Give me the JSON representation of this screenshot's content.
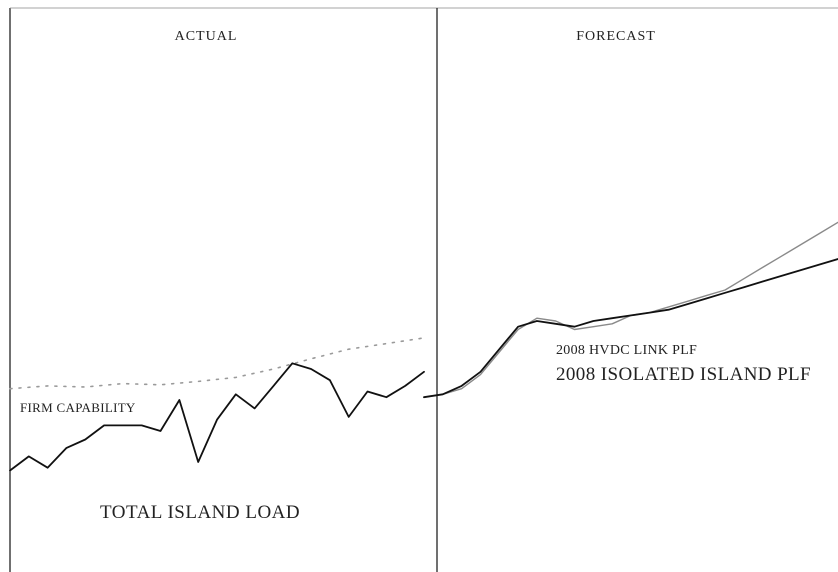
{
  "chart_data": {
    "type": "line",
    "title": "",
    "xlabel": "",
    "ylabel": "",
    "panels": {
      "actual": "ACTUAL",
      "forecast": "FORECAST"
    },
    "annotations": {
      "firm_capability": "FIRM CAPABILITY",
      "total_load": "TOTAL ISLAND LOAD",
      "hvdc_plf": "2008 HVDC LINK PLF",
      "isolated_plf": "2008 ISOLATED ISLAND PLF"
    },
    "x_range": [
      0,
      44
    ],
    "x_split": 22,
    "y_range": [
      0,
      100
    ],
    "series": [
      {
        "role": "firm_capability",
        "style": "dotted",
        "x": [
          0,
          2,
          4,
          6,
          8,
          10,
          12,
          14,
          16,
          18,
          20,
          22
        ],
        "values": [
          32.5,
          33,
          32.8,
          33.4,
          33.2,
          33.8,
          34.5,
          36,
          37.8,
          39.5,
          40.5,
          41.5
        ]
      },
      {
        "role": "total_load",
        "style": "solid",
        "x": [
          0,
          1,
          2,
          3,
          4,
          5,
          6,
          7,
          8,
          9,
          10,
          11,
          12,
          13,
          14,
          15,
          16,
          17,
          18,
          19,
          20,
          21,
          22
        ],
        "values": [
          18,
          20.5,
          18.5,
          22,
          23.5,
          26,
          26,
          26,
          25,
          30.5,
          19.5,
          27,
          31.5,
          29,
          33,
          37,
          36,
          34,
          27.5,
          32,
          31,
          33,
          35.5
        ]
      },
      {
        "role": "hvdc_plf",
        "style": "solid-light",
        "x": [
          22,
          23,
          24,
          25,
          26,
          27,
          28,
          29,
          30,
          31,
          32,
          33,
          34,
          35,
          36,
          37,
          38,
          39,
          40,
          41,
          42,
          43,
          44
        ],
        "values": [
          31,
          31.5,
          32.5,
          35,
          39,
          43,
          45,
          44.5,
          43,
          43.5,
          44,
          45.5,
          46,
          47,
          48,
          49,
          50,
          52,
          54,
          56,
          58,
          60,
          62
        ]
      },
      {
        "role": "isolated_plf",
        "style": "solid",
        "x": [
          22,
          23,
          24,
          25,
          26,
          27,
          28,
          29,
          30,
          31,
          32,
          33,
          34,
          35,
          36,
          37,
          38,
          39,
          40,
          41,
          42,
          43,
          44
        ],
        "values": [
          31,
          31.5,
          33,
          35.5,
          39.5,
          43.5,
          44.5,
          44,
          43.5,
          44.5,
          45,
          45.5,
          46,
          46.5,
          47.5,
          48.5,
          49.5,
          50.5,
          51.5,
          52.5,
          53.5,
          54.5,
          55.5
        ]
      }
    ]
  }
}
